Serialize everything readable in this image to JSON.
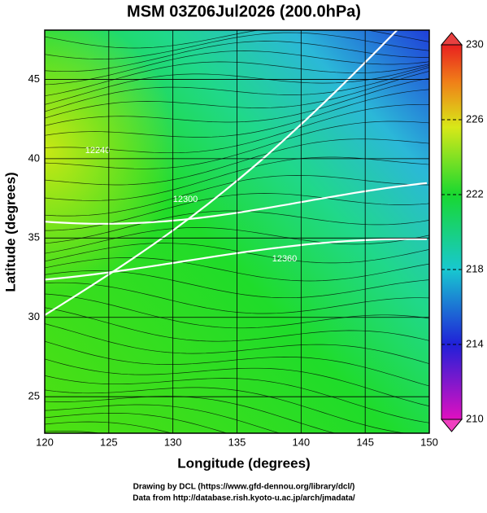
{
  "chart_data": {
    "type": "map",
    "title": "MSM 03Z06Jul2026 (200.0hPa)",
    "xlabel": "Longitude (degrees)",
    "ylabel": "Latitude  (degrees)",
    "xlim": [
      120,
      150
    ],
    "ylim": [
      22.7,
      48.1
    ],
    "xticks": [
      120,
      125,
      130,
      135,
      140,
      145,
      150
    ],
    "yticks": [
      25,
      30,
      35,
      40,
      45
    ],
    "grid": true,
    "colorbar": {
      "lim": [
        210,
        230
      ],
      "ticks": [
        210,
        214,
        218,
        222,
        226,
        230
      ]
    },
    "contour_labels": [
      "12240",
      "12300",
      "12360"
    ],
    "credits": [
      "Drawing by DCL (https://www.gfd-dennou.org/library/dcl/)",
      "Data from http://database.rish.kyoto-u.ac.jp/arch/jmadata/"
    ]
  }
}
